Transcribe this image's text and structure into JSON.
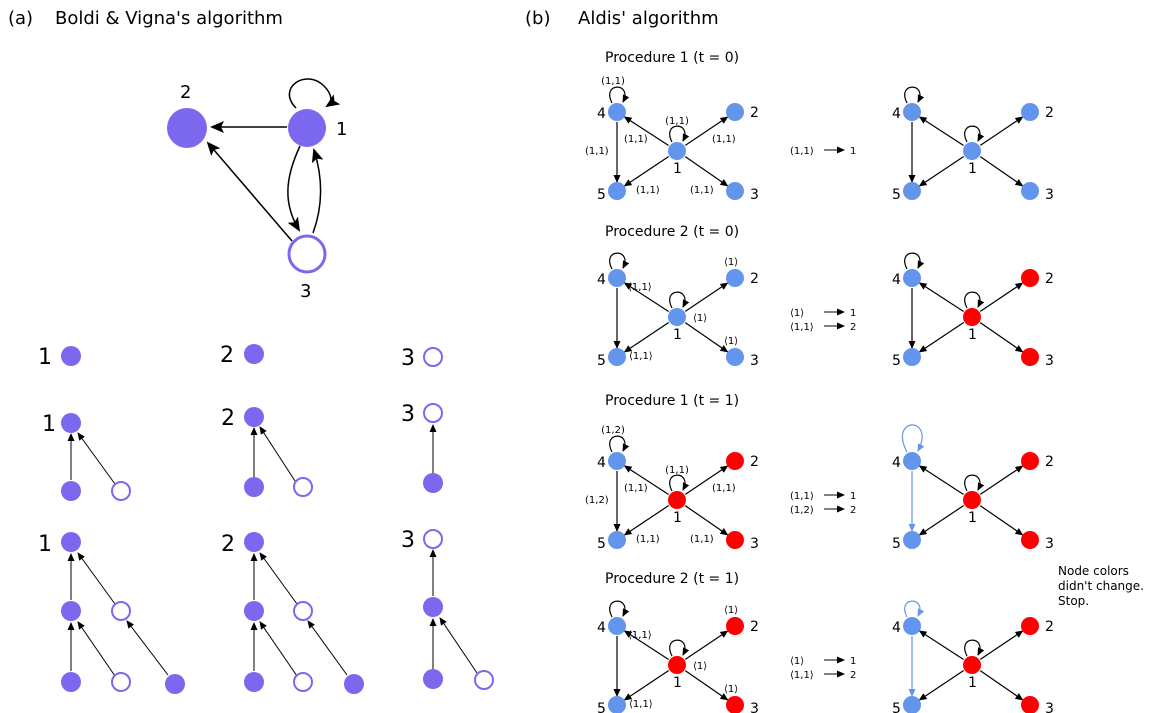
{
  "panel_a": {
    "label": "(a)",
    "title": "Boldi & Vigna's algorithm",
    "graph_nodes": [
      "2",
      "1",
      "3"
    ],
    "tree_roots": [
      "1",
      "2",
      "3"
    ]
  },
  "panel_b": {
    "label": "(b)",
    "title": "Aldis' algorithm",
    "rows": [
      {
        "title": "Procedure 1 (t = 0)",
        "node_labels": [
          "1",
          "2",
          "3",
          "4",
          "5"
        ],
        "edge_labels": [
          "(1,1)",
          "(1,1)",
          "(1,1)",
          "(1,1)",
          "(1,1)",
          "(1,1)",
          "(1,1)",
          "(1,1)"
        ],
        "mappings": [
          {
            "from": "(1,1)",
            "to": "1"
          }
        ]
      },
      {
        "title": "Procedure 2 (t = 0)",
        "node_labels": [
          "1",
          "2",
          "3",
          "4",
          "5"
        ],
        "node_multisets": [
          "⟨1,1⟩",
          "⟨1⟩",
          "⟨1⟩",
          "⟨1⟩",
          "⟨1,1⟩"
        ],
        "mappings": [
          {
            "from": "⟨1⟩",
            "to": "1"
          },
          {
            "from": "⟨1,1⟩",
            "to": "2"
          }
        ]
      },
      {
        "title": "Procedure 1 (t = 1)",
        "node_labels": [
          "1",
          "2",
          "3",
          "4",
          "5"
        ],
        "edge_labels": [
          "(1,2)",
          "(1,1)",
          "(1,1)",
          "(1,2)",
          "(1,1)",
          "(1,1)",
          "(1,1)",
          "(1,1)"
        ],
        "mappings": [
          {
            "from": "(1,1)",
            "to": "1"
          },
          {
            "from": "(1,2)",
            "to": "2"
          }
        ]
      },
      {
        "title": "Procedure 2 (t = 1)",
        "node_labels": [
          "1",
          "2",
          "3",
          "4",
          "5"
        ],
        "node_multisets": [
          "⟨1,1⟩",
          "⟨1⟩",
          "⟨1⟩",
          "⟨1⟩",
          "⟨1,1⟩"
        ],
        "mappings": [
          {
            "from": "⟨1⟩",
            "to": "1"
          },
          {
            "from": "⟨1,1⟩",
            "to": "2"
          }
        ]
      }
    ],
    "stop_note": [
      "Node colors",
      "didn't change.",
      "Stop."
    ]
  },
  "colors": {
    "purple": "#7b68ee",
    "blue": "#6495ed",
    "red": "#ff0000",
    "light_blue_edge": "#6495ed"
  }
}
